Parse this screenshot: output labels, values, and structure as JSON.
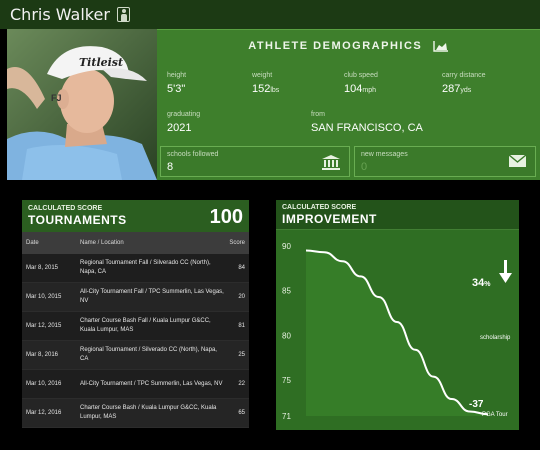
{
  "header": {
    "player_name": "Chris Walker",
    "profile_icon": "person-icon"
  },
  "photo": {
    "cap_text": "Titleist"
  },
  "demographics": {
    "title": "ATHLETE DEMOGRAPHICS",
    "title_icon": "area-chart-icon",
    "height": {
      "label": "height",
      "value": "5'3\""
    },
    "weight": {
      "label": "weight",
      "value": "152",
      "unit": "lbs"
    },
    "club_speed": {
      "label": "club speed",
      "value": "104",
      "unit": "mph"
    },
    "carry_distance": {
      "label": "carry distance",
      "value": "287",
      "unit": "yds"
    },
    "graduating": {
      "label": "graduating",
      "value": "2021"
    },
    "from": {
      "label": "from",
      "value": "SAN FRANCISCO, CA"
    },
    "schools_followed": {
      "label": "schools followed",
      "value": "8",
      "icon": "institution-icon"
    },
    "new_messages": {
      "label": "new messages",
      "value": "0",
      "icon": "envelope-icon"
    }
  },
  "tournaments": {
    "score_label": "CALCULATED SCORE",
    "title": "TOURNAMENTS",
    "score": "100",
    "columns": {
      "date": "Date",
      "name": "Name / Location",
      "score": "Score"
    },
    "rows": [
      {
        "date": "Mar 8, 2015",
        "name": "Regional Tournament Fall / Silverado CC (North), Napa, CA",
        "score": "84"
      },
      {
        "date": "Mar 10, 2015",
        "name": "All-City Tournament Fall / TPC Summerlin, Las Vegas, NV",
        "score": "20"
      },
      {
        "date": "Mar 12, 2015",
        "name": "Charter Course Bash Fall / Kuala Lumpur G&CC, Kuala Lumpur, MAS",
        "score": "81"
      },
      {
        "date": "Mar 8, 2016",
        "name": "Regional Tournament / Silverado CC (North), Napa, CA",
        "score": "25"
      },
      {
        "date": "Mar 10, 2016",
        "name": "All-City Tournament / TPC Summerlin, Las Vegas, NV",
        "score": "22"
      },
      {
        "date": "Mar 12, 2016",
        "name": "Charter Course Bash / Kuala Lumpur G&CC, Kuala Lumpur, MAS",
        "score": "65"
      }
    ]
  },
  "improvement": {
    "score_label": "CALCULATED SCORE",
    "title": "IMPROVEMENT",
    "percent": "34",
    "percent_sign": "%",
    "trend_icon": "arrow-down-icon",
    "annotation_scholarship": "scholarship",
    "end_value": "-37",
    "end_label": "PGA Tour"
  },
  "chart_data": {
    "type": "area",
    "title": "IMPROVEMENT",
    "y_ticks": [
      90,
      85,
      80,
      75,
      71
    ],
    "ylim": [
      71,
      90
    ],
    "x": [
      0,
      0.1,
      0.2,
      0.3,
      0.4,
      0.5,
      0.6,
      0.7,
      0.8,
      0.9,
      1.0
    ],
    "values": [
      89.5,
      89.3,
      88.3,
      86.6,
      84.3,
      81.5,
      78.4,
      75.4,
      72.9,
      71.5,
      71.2
    ],
    "grid": false
  }
}
